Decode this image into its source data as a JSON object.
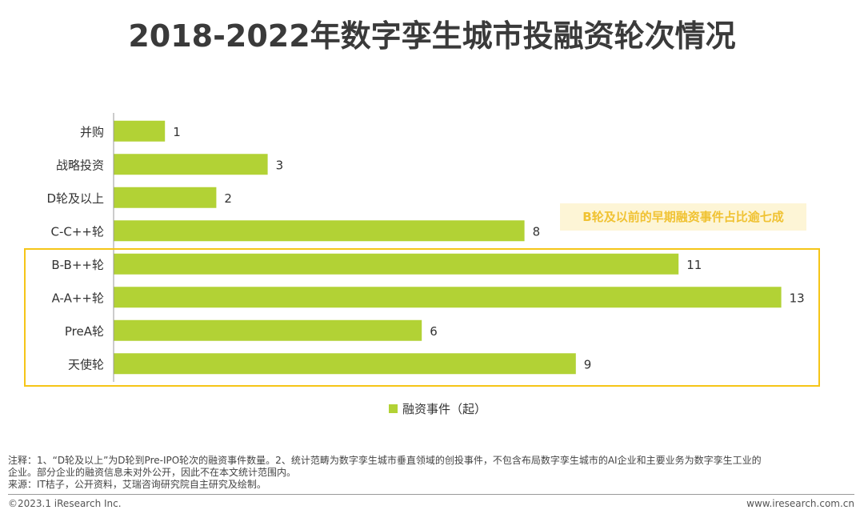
{
  "title": "2018-2022年数字孪生城市投融资轮次情况",
  "colors": {
    "bar": "#b2d235",
    "highlight": "#f5c518",
    "callout_bg": "#fdf5d6",
    "callout_text": "#f0c232",
    "axis": "#999999"
  },
  "callout": "B轮及以前的早期融资事件占比逾七成",
  "legend": {
    "label": "融资事件（起）"
  },
  "chart_data": {
    "type": "bar",
    "orientation": "horizontal",
    "title": "2018-2022年数字孪生城市投融资轮次情况",
    "categories": [
      "并购",
      "战略投资",
      "D轮及以上",
      "C-C++轮",
      "B-B++轮",
      "A-A++轮",
      "PreA轮",
      "天使轮"
    ],
    "series": [
      {
        "name": "融资事件（起）",
        "values": [
          1,
          3,
          2,
          8,
          11,
          13,
          6,
          9
        ]
      }
    ],
    "xlim": [
      0,
      13
    ],
    "grid": false,
    "data_labels": true,
    "highlighted_categories": [
      "B-B++轮",
      "A-A++轮",
      "PreA轮",
      "天使轮"
    ]
  },
  "notes": {
    "line1": "注释：1、“D轮及以上”为D轮到Pre-IPO轮次的融资事件数量。2、统计范畴为数字孪生城市垂直领域的创投事件，不包含布局数字孪生城市的AI企业和主要业务为数字孪生工业的",
    "line2": "企业。部分企业的融资信息未对外公开，因此不在本文统计范围内。",
    "source": "来源：IT桔子，公开资料，艾瑞咨询研究院自主研究及绘制。"
  },
  "footer": {
    "copyright": "©2023.1 iResearch Inc.",
    "website": "www.iresearch.com.cn"
  }
}
